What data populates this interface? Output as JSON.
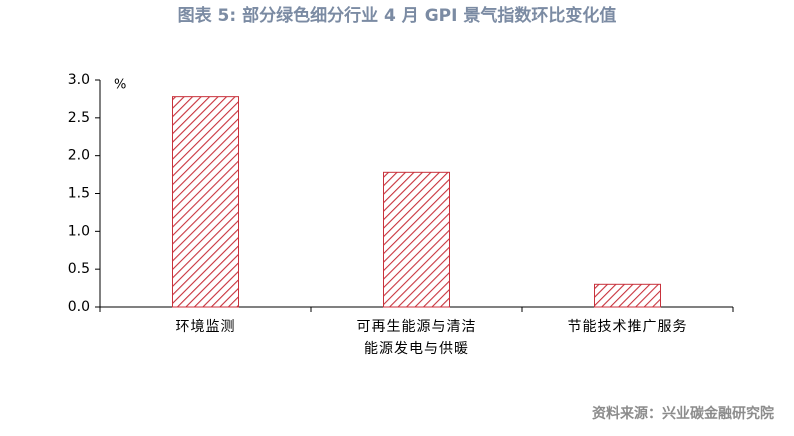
{
  "chart_data": {
    "type": "bar",
    "title": "图表 5:  部分绿色细分行业 4 月 GPI 景气指数环比变化值",
    "unit_label": "%",
    "source": "资料来源：兴业碳金融研究院",
    "categories": [
      "环境监测",
      "可再生能源与清洁能源发电与供暖",
      "节能技术推广服务"
    ],
    "values": [
      2.78,
      1.78,
      0.3
    ],
    "color": "#c8323c",
    "hatch": true,
    "ylim": [
      0,
      3
    ],
    "yticks": [
      {
        "value": 0,
        "label": "0.0"
      },
      0.5,
      {
        "value": 1,
        "label": "1.0"
      },
      1.5,
      {
        "value": 2,
        "label": "2.0"
      },
      2.5,
      {
        "value": 3,
        "label": "3.0"
      }
    ],
    "grid": false
  }
}
